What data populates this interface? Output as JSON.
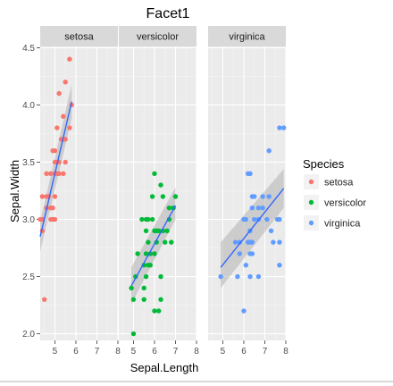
{
  "chart_data": {
    "type": "scatter",
    "title": "Facet1",
    "xlabel": "Sepal.Length",
    "ylabel": "Sepal.Width",
    "xlim": [
      4.3,
      8.0
    ],
    "ylim": [
      1.95,
      4.55
    ],
    "xticks": [
      5,
      6,
      7,
      8
    ],
    "yticks": [
      2.0,
      2.5,
      3.0,
      3.5,
      4.0,
      4.5
    ],
    "grid": true,
    "smooth": "lm",
    "legend": {
      "title": "Species",
      "position": "right",
      "entries": [
        "setosa",
        "versicolor",
        "virginica"
      ]
    },
    "colors": {
      "setosa": "#F8766D",
      "versicolor": "#00BA38",
      "virginica": "#619CFF",
      "fit_line": "#3366FF",
      "ribbon": "#b3b3b3",
      "panel": "#EBEBEB",
      "strip": "#D9D9D9"
    },
    "facets": [
      {
        "name": "setosa",
        "fit": {
          "x": [
            4.3,
            5.8
          ],
          "y": [
            2.85,
            4.03
          ],
          "ci_low": [
            2.72,
            3.88
          ],
          "ci_high": [
            2.98,
            4.18
          ]
        },
        "points": [
          [
            5.7,
            4.4
          ],
          [
            5.5,
            4.2
          ],
          [
            5.2,
            4.1
          ],
          [
            5.8,
            4.0
          ],
          [
            5.4,
            3.9
          ],
          [
            5.7,
            3.8
          ],
          [
            5.1,
            3.8
          ],
          [
            5.5,
            3.7
          ],
          [
            5.3,
            3.7
          ],
          [
            5.4,
            3.7
          ],
          [
            5.0,
            3.6
          ],
          [
            4.9,
            3.6
          ],
          [
            5.1,
            3.5
          ],
          [
            5.0,
            3.5
          ],
          [
            5.2,
            3.5
          ],
          [
            5.5,
            3.5
          ],
          [
            4.6,
            3.4
          ],
          [
            4.8,
            3.4
          ],
          [
            5.0,
            3.4
          ],
          [
            5.1,
            3.4
          ],
          [
            5.4,
            3.4
          ],
          [
            5.2,
            3.4
          ],
          [
            4.7,
            3.2
          ],
          [
            4.4,
            3.2
          ],
          [
            4.6,
            3.2
          ],
          [
            5.0,
            3.2
          ],
          [
            4.6,
            3.1
          ],
          [
            4.9,
            3.1
          ],
          [
            4.8,
            3.1
          ],
          [
            4.9,
            3.0
          ],
          [
            4.4,
            3.0
          ],
          [
            4.3,
            3.0
          ],
          [
            4.8,
            3.0
          ],
          [
            5.0,
            3.0
          ],
          [
            4.4,
            2.9
          ],
          [
            4.5,
            2.3
          ]
        ]
      },
      {
        "name": "versicolor",
        "fit": {
          "x": [
            4.9,
            7.0
          ],
          "y": [
            2.42,
            3.12
          ],
          "ci_low": [
            2.26,
            3.0
          ],
          "ci_high": [
            2.58,
            3.28
          ]
        },
        "points": [
          [
            6.0,
            3.4
          ],
          [
            5.9,
            3.2
          ],
          [
            6.4,
            3.2
          ],
          [
            7.0,
            3.2
          ],
          [
            6.3,
            3.3
          ],
          [
            6.7,
            3.1
          ],
          [
            6.9,
            3.1
          ],
          [
            6.7,
            3.0
          ],
          [
            5.4,
            3.0
          ],
          [
            5.6,
            3.0
          ],
          [
            5.7,
            3.0
          ],
          [
            5.9,
            3.0
          ],
          [
            6.0,
            2.9
          ],
          [
            6.1,
            2.9
          ],
          [
            6.2,
            2.9
          ],
          [
            6.6,
            2.9
          ],
          [
            6.4,
            2.9
          ],
          [
            5.6,
            2.9
          ],
          [
            5.7,
            2.8
          ],
          [
            6.1,
            2.8
          ],
          [
            6.5,
            2.8
          ],
          [
            6.8,
            2.8
          ],
          [
            5.8,
            2.7
          ],
          [
            5.2,
            2.7
          ],
          [
            6.0,
            2.7
          ],
          [
            5.6,
            2.7
          ],
          [
            5.8,
            2.6
          ],
          [
            5.7,
            2.6
          ],
          [
            5.5,
            2.6
          ],
          [
            5.6,
            2.5
          ],
          [
            5.1,
            2.5
          ],
          [
            6.3,
            2.5
          ],
          [
            4.9,
            2.4
          ],
          [
            5.5,
            2.4
          ],
          [
            5.0,
            2.3
          ],
          [
            5.5,
            2.3
          ],
          [
            6.3,
            2.3
          ],
          [
            6.0,
            2.2
          ],
          [
            6.2,
            2.2
          ],
          [
            5.0,
            2.0
          ]
        ]
      },
      {
        "name": "virginica",
        "fit": {
          "x": [
            4.9,
            7.9
          ],
          "y": [
            2.58,
            3.27
          ],
          "ci_low": [
            2.4,
            3.1
          ],
          "ci_high": [
            2.8,
            3.44
          ]
        },
        "points": [
          [
            7.7,
            3.8
          ],
          [
            7.9,
            3.8
          ],
          [
            7.2,
            3.6
          ],
          [
            6.2,
            3.4
          ],
          [
            6.3,
            3.4
          ],
          [
            6.4,
            3.2
          ],
          [
            6.5,
            3.2
          ],
          [
            6.9,
            3.2
          ],
          [
            7.2,
            3.2
          ],
          [
            6.4,
            3.1
          ],
          [
            6.7,
            3.1
          ],
          [
            6.9,
            3.1
          ],
          [
            6.5,
            3.0
          ],
          [
            6.7,
            3.0
          ],
          [
            7.1,
            3.0
          ],
          [
            7.6,
            3.0
          ],
          [
            7.7,
            3.0
          ],
          [
            6.0,
            3.0
          ],
          [
            6.1,
            3.0
          ],
          [
            6.3,
            2.9
          ],
          [
            7.3,
            2.9
          ],
          [
            6.3,
            2.8
          ],
          [
            6.4,
            2.8
          ],
          [
            5.8,
            2.8
          ],
          [
            6.2,
            2.8
          ],
          [
            7.4,
            2.8
          ],
          [
            7.7,
            2.8
          ],
          [
            5.8,
            2.7
          ],
          [
            6.3,
            2.7
          ],
          [
            6.4,
            2.7
          ],
          [
            6.7,
            2.5
          ],
          [
            5.7,
            2.5
          ],
          [
            4.9,
            2.5
          ],
          [
            6.3,
            2.5
          ],
          [
            5.6,
            2.8
          ],
          [
            6.0,
            2.2
          ],
          [
            7.7,
            2.6
          ],
          [
            6.1,
            2.6
          ]
        ]
      }
    ]
  }
}
